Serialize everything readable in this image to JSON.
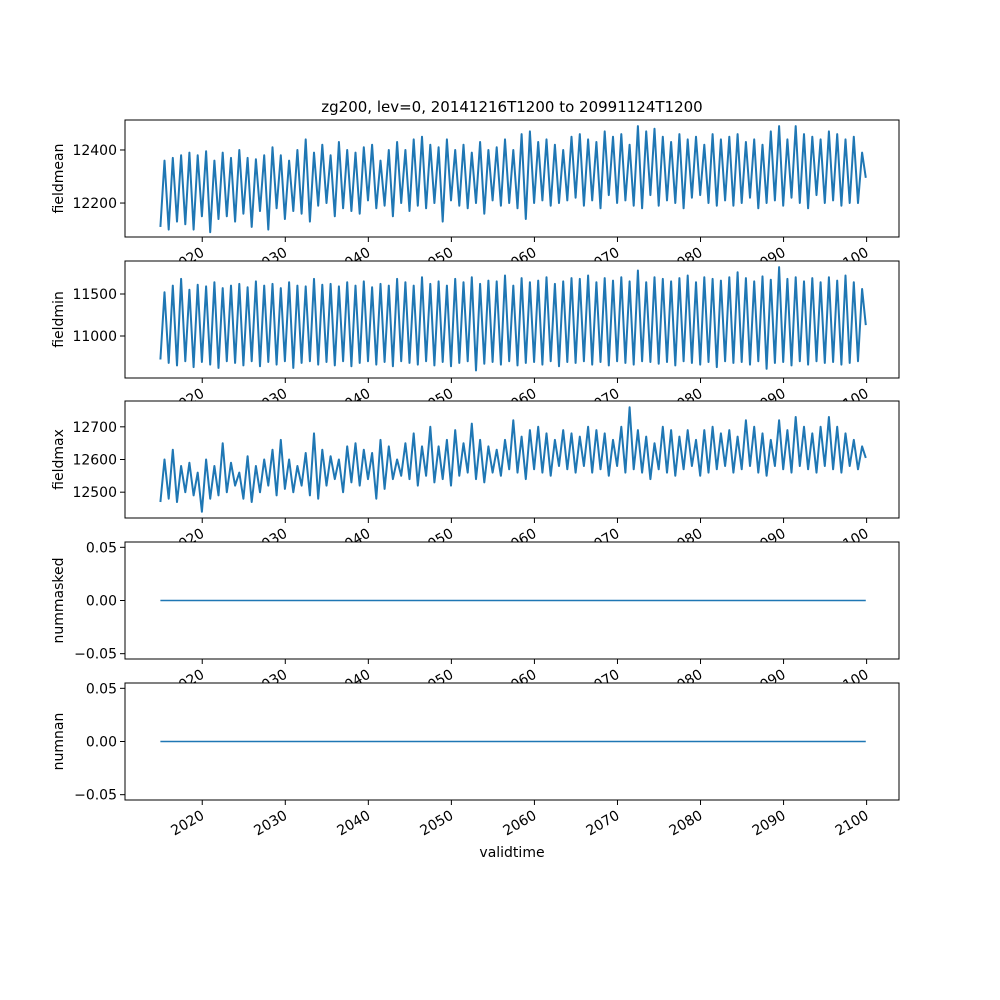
{
  "chart_data": {
    "type": "line",
    "title": "zg200, lev=0, 20141216T1200 to 20991124T1200",
    "xlabel": "validtime",
    "color": "#1f77b4",
    "xlim": [
      2010.7,
      2103.9
    ],
    "xticks": [
      2020,
      2030,
      2040,
      2050,
      2060,
      2070,
      2080,
      2090,
      2100
    ],
    "xtick_labels": [
      "2020",
      "2030",
      "2040",
      "2050",
      "2060",
      "2070",
      "2080",
      "2090",
      "2100"
    ],
    "x_start": 2014.96,
    "x_end": 2099.9,
    "sampling_note_years": "annual low (start of year) and high (mid year) pairs, 2015-2099",
    "panels": [
      {
        "ylabel": "fieldmean",
        "ylim": [
          12072,
          12513
        ],
        "yticks": [
          12200,
          12400
        ],
        "ytick_labels": [
          "12200",
          "12400"
        ],
        "highs": [
          12360,
          12370,
          12380,
          12390,
          12380,
          12395,
          12360,
          12390,
          12370,
          12400,
          12370,
          12365,
          12380,
          12410,
          12380,
          12360,
          12400,
          12440,
          12390,
          12420,
          12380,
          12430,
          12400,
          12390,
          12410,
          12420,
          12360,
          12400,
          12430,
          12400,
          12440,
          12450,
          12420,
          12410,
          12440,
          12400,
          12420,
          12390,
          12430,
          12400,
          12410,
          12440,
          12400,
          12460,
          12470,
          12430,
          12440,
          12420,
          12400,
          12450,
          12460,
          12440,
          12430,
          12470,
          12450,
          12460,
          12420,
          12490,
          12470,
          12480,
          12450,
          12430,
          12460,
          12440,
          12450,
          12420,
          12460,
          12440,
          12450,
          12460,
          12430,
          12440,
          12420,
          12470,
          12490,
          12440,
          12490,
          12460,
          12450,
          12440,
          12470,
          12460,
          12440,
          12450,
          12390
        ],
        "lows": [
          12110,
          12100,
          12130,
          12120,
          12100,
          12150,
          12090,
          12140,
          12150,
          12130,
          12160,
          12110,
          12170,
          12100,
          12180,
          12140,
          12170,
          12160,
          12130,
          12190,
          12200,
          12150,
          12180,
          12170,
          12160,
          12210,
          12180,
          12190,
          12150,
          12200,
          12170,
          12190,
          12180,
          12200,
          12130,
          12210,
          12190,
          12180,
          12200,
          12160,
          12210,
          12190,
          12200,
          12180,
          12140,
          12200,
          12210,
          12190,
          12200,
          12210,
          12220,
          12190,
          12210,
          12180,
          12230,
          12200,
          12210,
          12190,
          12180,
          12230,
          12190,
          12210,
          12200,
          12180,
          12220,
          12230,
          12200,
          12190,
          12210,
          12190,
          12200,
          12220,
          12180,
          12200,
          12210,
          12190,
          12220,
          12200,
          12180,
          12230,
          12200,
          12210,
          12190,
          12200,
          12200
        ]
      },
      {
        "ylabel": "fieldmin",
        "ylim": [
          10500,
          11893
        ],
        "yticks": [
          11000,
          11500
        ],
        "ytick_labels": [
          "11000",
          "11500"
        ],
        "highs": [
          11520,
          11600,
          11680,
          11550,
          11610,
          11590,
          11640,
          11570,
          11600,
          11620,
          11580,
          11650,
          11600,
          11620,
          11570,
          11640,
          11600,
          11590,
          11680,
          11610,
          11620,
          11590,
          11640,
          11600,
          11650,
          11580,
          11620,
          11600,
          11680,
          11640,
          11600,
          11700,
          11620,
          11650,
          11600,
          11680,
          11640,
          11700,
          11620,
          11660,
          11650,
          11720,
          11600,
          11690,
          11640,
          11660,
          11700,
          11620,
          11650,
          11690,
          11680,
          11720,
          11640,
          11690,
          11660,
          11700,
          11650,
          11780,
          11640,
          11700,
          11680,
          11650,
          11690,
          11720,
          11640,
          11700,
          11680,
          11660,
          11700,
          11760,
          11690,
          11650,
          11710,
          11670,
          11820,
          11680,
          11700,
          11650,
          11690,
          11640,
          11700,
          11660,
          11720,
          11640,
          11560
        ],
        "lows": [
          10720,
          10680,
          10650,
          10700,
          10630,
          10690,
          10660,
          10620,
          10700,
          10680,
          10650,
          10700,
          10640,
          10690,
          10660,
          10700,
          10620,
          10680,
          10700,
          10660,
          10690,
          10650,
          10700,
          10640,
          10680,
          10700,
          10660,
          10690,
          10640,
          10700,
          10680,
          10660,
          10700,
          10650,
          10690,
          10640,
          10680,
          10700,
          10590,
          10670,
          10690,
          10660,
          10700,
          10650,
          10680,
          10690,
          10660,
          10700,
          10640,
          10690,
          10680,
          10700,
          10660,
          10690,
          10650,
          10700,
          10680,
          10660,
          10700,
          10690,
          10670,
          10690,
          10650,
          10700,
          10680,
          10660,
          10690,
          10630,
          10700,
          10680,
          10690,
          10660,
          10700,
          10610,
          10680,
          10690,
          10650,
          10700,
          10660,
          10700,
          10680,
          10690,
          10660,
          10680,
          10700
        ]
      },
      {
        "ylabel": "fieldmax",
        "ylim": [
          12421,
          12779
        ],
        "yticks": [
          12500,
          12600,
          12700
        ],
        "ytick_labels": [
          "12500",
          "12600",
          "12700"
        ],
        "highs": [
          12600,
          12630,
          12580,
          12590,
          12560,
          12600,
          12580,
          12650,
          12590,
          12560,
          12610,
          12580,
          12600,
          12630,
          12660,
          12600,
          12580,
          12620,
          12680,
          12630,
          12610,
          12600,
          12640,
          12650,
          12630,
          12620,
          12660,
          12640,
          12600,
          12650,
          12680,
          12640,
          12700,
          12640,
          12660,
          12690,
          12650,
          12710,
          12660,
          12640,
          12630,
          12660,
          12720,
          12670,
          12690,
          12700,
          12680,
          12660,
          12690,
          12680,
          12670,
          12700,
          12690,
          12680,
          12660,
          12700,
          12760,
          12690,
          12670,
          12650,
          12700,
          12690,
          12670,
          12690,
          12660,
          12690,
          12700,
          12680,
          12690,
          12670,
          12720,
          12700,
          12680,
          12660,
          12720,
          12690,
          12730,
          12700,
          12680,
          12700,
          12730,
          12700,
          12680,
          12660,
          12640
        ],
        "lows": [
          12470,
          12480,
          12470,
          12500,
          12490,
          12440,
          12480,
          12490,
          12500,
          12520,
          12480,
          12470,
          12500,
          12520,
          12490,
          12510,
          12500,
          12520,
          12490,
          12480,
          12520,
          12540,
          12500,
          12530,
          12520,
          12540,
          12480,
          12510,
          12540,
          12550,
          12540,
          12520,
          12550,
          12530,
          12540,
          12520,
          12550,
          12560,
          12540,
          12530,
          12560,
          12550,
          12570,
          12560,
          12540,
          12570,
          12560,
          12550,
          12580,
          12570,
          12560,
          12580,
          12560,
          12570,
          12550,
          12580,
          12560,
          12570,
          12560,
          12540,
          12570,
          12560,
          12550,
          12570,
          12580,
          12550,
          12560,
          12570,
          12580,
          12560,
          12570,
          12580,
          12560,
          12550,
          12580,
          12570,
          12560,
          12580,
          12570,
          12560,
          12580,
          12570,
          12560,
          12580,
          12570
        ]
      },
      {
        "ylabel": "nummasked",
        "ylim": [
          -0.055,
          0.055
        ],
        "yticks": [
          -0.05,
          0.0,
          0.05
        ],
        "ytick_labels": [
          "−0.05",
          "0.00",
          "0.05"
        ],
        "constant": 0
      },
      {
        "ylabel": "numnan",
        "ylim": [
          -0.055,
          0.055
        ],
        "yticks": [
          -0.05,
          0.0,
          0.05
        ],
        "ytick_labels": [
          "−0.05",
          "0.00",
          "0.05"
        ],
        "constant": 0
      }
    ]
  }
}
